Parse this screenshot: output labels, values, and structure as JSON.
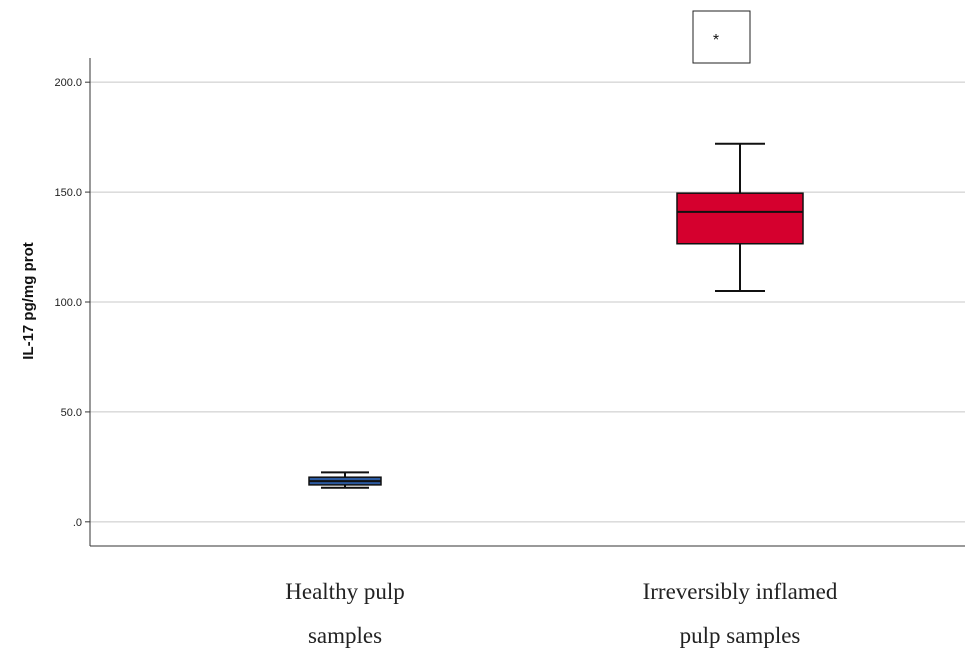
{
  "chart_data": {
    "type": "box",
    "ylabel": "IL-17  pg/mg prot",
    "xlabel": "",
    "ylim": [
      -11,
      211
    ],
    "yticks": [
      0,
      50,
      100,
      150,
      200
    ],
    "ytick_labels": [
      ".0",
      "50.0",
      "100.0",
      "150.0",
      "200.0"
    ],
    "grid": true,
    "categories": [
      {
        "label_lines": [
          "Healthy pulp",
          "samples"
        ]
      },
      {
        "label_lines": [
          "Irreversibly inflamed",
          "pulp samples"
        ]
      }
    ],
    "boxes": [
      {
        "whisker_low": 15.5,
        "q1": 16.8,
        "median": 18.5,
        "q3": 20.3,
        "whisker_high": 22.5,
        "color": "#2c5aa0"
      },
      {
        "whisker_low": 105,
        "q1": 126.5,
        "median": 141,
        "q3": 149.5,
        "whisker_high": 172,
        "color": "#d5002e"
      }
    ],
    "annotation": {
      "text": "*"
    }
  }
}
